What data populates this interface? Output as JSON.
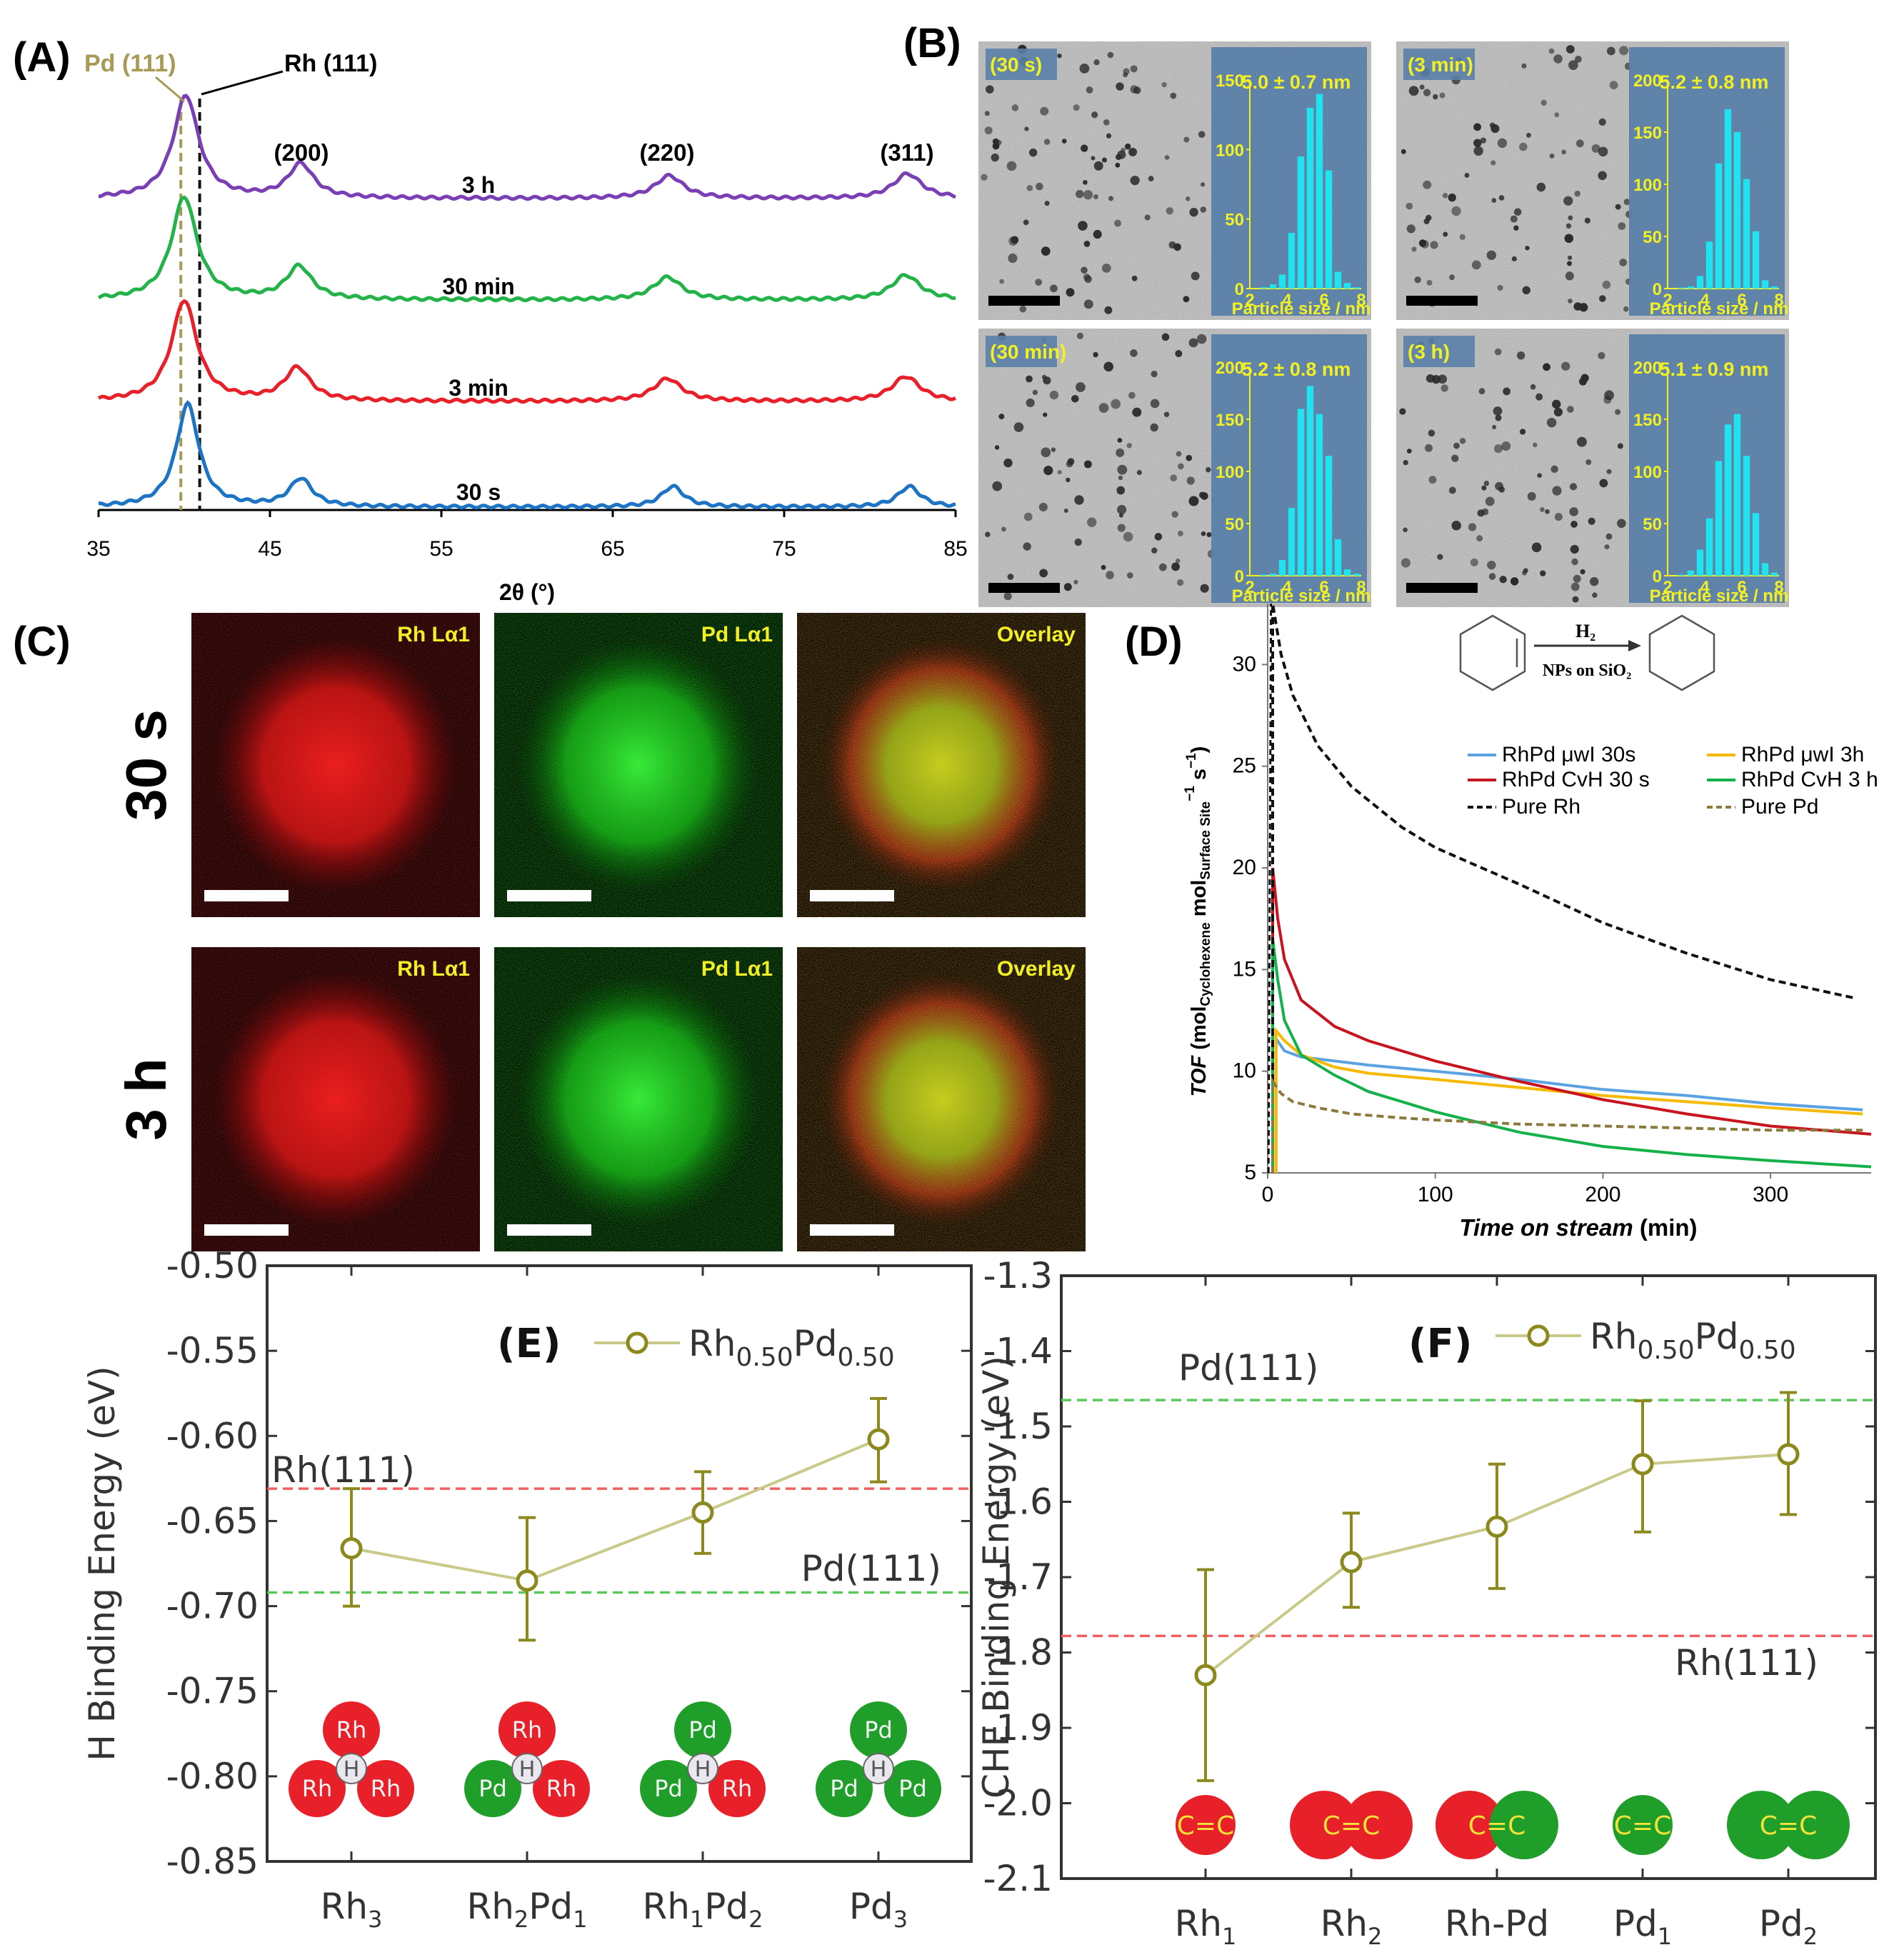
{
  "colors": {
    "rh": "#e8202a",
    "pd": "#1f9e2a",
    "olive": "#8c8a1e",
    "lightolive": "#c9c98a",
    "cyan": "#21e3f0",
    "temPanel": "#5a7fa8",
    "yellowText": "#f2f024"
  },
  "panel_labels": {
    "a": "(A)",
    "b": "(B)",
    "c": "(C)",
    "d": "(D)"
  },
  "chart_data": [
    {
      "id": "A",
      "type": "line",
      "xlabel": "2θ (°)",
      "ylabel": "",
      "xlim": [
        35,
        85
      ],
      "xticks": [
        35,
        45,
        55,
        65,
        75,
        85
      ],
      "annotations": {
        "pd111": "Pd (111)",
        "rh111": "Rh (111)",
        "p200": "(200)",
        "p220": "(220)",
        "p311": "(311)"
      },
      "ref_lines": {
        "pd": 39.8,
        "rh": 40.9
      },
      "series": [
        {
          "name": "3 h",
          "color": "#7a3fb5",
          "peaks": [
            [
              40.1,
              1.0,
              0.9
            ],
            [
              46.8,
              0.33,
              0.9
            ],
            [
              68.3,
              0.22,
              1.0
            ],
            [
              82.2,
              0.24,
              1.0
            ]
          ]
        },
        {
          "name": "30 min",
          "color": "#23b34a",
          "peaks": [
            [
              40.0,
              1.0,
              0.9
            ],
            [
              46.7,
              0.32,
              0.9
            ],
            [
              68.2,
              0.22,
              1.0
            ],
            [
              82.1,
              0.24,
              1.0
            ]
          ]
        },
        {
          "name": "3 min",
          "color": "#e8202a",
          "peaks": [
            [
              40.0,
              0.98,
              0.9
            ],
            [
              46.6,
              0.32,
              0.9
            ],
            [
              68.2,
              0.22,
              1.0
            ],
            [
              82.1,
              0.24,
              1.0
            ]
          ]
        },
        {
          "name": "30 s",
          "color": "#1d73c4",
          "peaks": [
            [
              40.2,
              1.0,
              0.8
            ],
            [
              46.8,
              0.27,
              0.8
            ],
            [
              68.5,
              0.2,
              0.8
            ],
            [
              82.3,
              0.2,
              0.8
            ]
          ]
        }
      ]
    },
    {
      "id": "B",
      "type": "bar",
      "xlabel": "Particle size / nm",
      "xlim": [
        2,
        8
      ],
      "xticks": [
        2,
        4,
        6,
        8
      ],
      "bin_centers": [
        2.75,
        3.25,
        3.75,
        4.25,
        4.75,
        5.25,
        5.75,
        6.25,
        6.75,
        7.25,
        7.75
      ],
      "panels": [
        {
          "label": "(30 s)",
          "stat": "5.0 ± 0.7 nm",
          "ylim": [
            0,
            150
          ],
          "yticks": [
            0,
            50,
            100,
            150
          ],
          "values": [
            1,
            3,
            10,
            40,
            95,
            130,
            140,
            85,
            12,
            4,
            1
          ]
        },
        {
          "label": "(3 min)",
          "stat": "5.2 ± 0.8 nm",
          "ylim": [
            0,
            200
          ],
          "yticks": [
            0,
            50,
            100,
            150,
            200
          ],
          "values": [
            1,
            2,
            12,
            45,
            120,
            172,
            150,
            105,
            55,
            8,
            2
          ]
        },
        {
          "label": "(30 min)",
          "stat": "5.2 ± 0.8 nm",
          "ylim": [
            0,
            200
          ],
          "yticks": [
            0,
            50,
            100,
            150,
            200
          ],
          "values": [
            1,
            2,
            15,
            65,
            160,
            182,
            155,
            115,
            35,
            6,
            2
          ]
        },
        {
          "label": "(3 h)",
          "stat": "5.1 ± 0.9 nm",
          "ylim": [
            0,
            200
          ],
          "yticks": [
            0,
            50,
            100,
            150,
            200
          ],
          "values": [
            1,
            5,
            25,
            55,
            110,
            145,
            155,
            115,
            60,
            12,
            3
          ]
        }
      ]
    },
    {
      "id": "C",
      "type": "other",
      "rows": [
        "30 s",
        "3 h"
      ],
      "maps": [
        "Rh Lα1",
        "Pd Lα1",
        "Overlay"
      ]
    },
    {
      "id": "D",
      "type": "line",
      "xlabel_italic": "Time on stream",
      "xlabel_unit": " (min)",
      "ylabel_italic": "TOF",
      "ylabel_rest": " (mol",
      "ylabel_sub1": "Cyclohexene",
      "ylabel_mid": " mol",
      "ylabel_sub2": "Surface Site",
      "ylabel_sup": "−1",
      "ylabel_end": " s",
      "ylabel_sup2": "−1",
      "ylabel_close": ")",
      "xlim": [
        0,
        360
      ],
      "ylim": [
        5,
        33
      ],
      "xticks": [
        0,
        100,
        200,
        300
      ],
      "yticks": [
        5,
        10,
        15,
        20,
        25,
        30
      ],
      "scheme": {
        "reagent": "H₂",
        "catalyst": "NPs on SiO₂"
      },
      "series": [
        {
          "name": "RhPd μwI 30s",
          "color": "#5ba3e0",
          "dash": "",
          "x": [
            5,
            10,
            20,
            40,
            60,
            100,
            150,
            200,
            250,
            300,
            355
          ],
          "y": [
            11.6,
            11.0,
            10.7,
            10.5,
            10.3,
            10.0,
            9.6,
            9.1,
            8.8,
            8.4,
            8.1
          ]
        },
        {
          "name": "RhPd μwI 3h",
          "color": "#f5b900",
          "dash": "",
          "x": [
            5,
            10,
            20,
            40,
            60,
            100,
            150,
            200,
            250,
            300,
            355
          ],
          "y": [
            12.0,
            11.5,
            10.8,
            10.2,
            9.9,
            9.6,
            9.2,
            8.8,
            8.5,
            8.2,
            7.9
          ]
        },
        {
          "name": "RhPd CvH 30 s",
          "color": "#c8141e",
          "dash": "",
          "x": [
            3,
            6,
            10,
            20,
            40,
            60,
            100,
            150,
            200,
            250,
            300,
            360
          ],
          "y": [
            20,
            17.5,
            15.5,
            13.5,
            12.2,
            11.5,
            10.5,
            9.5,
            8.6,
            7.9,
            7.3,
            6.9
          ]
        },
        {
          "name": "RhPd CvH 3 h",
          "color": "#14b04a",
          "dash": "",
          "x": [
            3,
            6,
            10,
            20,
            40,
            60,
            100,
            150,
            200,
            250,
            300,
            360
          ],
          "y": [
            16.5,
            14.5,
            12.5,
            10.8,
            9.8,
            9.0,
            8.0,
            7.0,
            6.3,
            5.9,
            5.6,
            5.3
          ]
        },
        {
          "name": "Pure Rh",
          "color": "#111111",
          "dash": "10,6",
          "x": [
            3,
            8,
            15,
            30,
            50,
            80,
            100,
            150,
            200,
            250,
            300,
            350
          ],
          "y": [
            33,
            30.5,
            28.5,
            26,
            24,
            22,
            21,
            19.2,
            17.3,
            15.8,
            14.5,
            13.6
          ]
        },
        {
          "name": "Pure Pd",
          "color": "#8c7a3c",
          "dash": "10,6",
          "x": [
            3,
            8,
            15,
            30,
            50,
            80,
            100,
            150,
            200,
            250,
            300,
            355
          ],
          "y": [
            9.5,
            8.9,
            8.5,
            8.2,
            7.9,
            7.7,
            7.6,
            7.4,
            7.3,
            7.2,
            7.1,
            7.1
          ]
        }
      ]
    },
    {
      "id": "E",
      "type": "scatter",
      "panel_label": "(E)",
      "ylabel": "H Binding Energy (eV)",
      "ylim": [
        -0.85,
        -0.5
      ],
      "yticks": [
        "-0.50",
        "-0.55",
        "-0.60",
        "-0.65",
        "-0.70",
        "-0.75",
        "-0.80",
        "-0.85"
      ],
      "legend_pre": "Rh",
      "legend_sub1": "0.50",
      "legend_mid": "Pd",
      "legend_sub2": "0.50",
      "categories": [
        {
          "a": "Rh",
          "as": "3",
          "b": "",
          "bs": ""
        },
        {
          "a": "Rh",
          "as": "2",
          "b": "Pd",
          "bs": "1"
        },
        {
          "a": "Rh",
          "as": "1",
          "b": "Pd",
          "bs": "2"
        },
        {
          "a": "Pd",
          "as": "3",
          "b": "",
          "bs": ""
        }
      ],
      "values": [
        -0.666,
        -0.685,
        -0.645,
        -0.602
      ],
      "err_low": [
        -0.7,
        -0.72,
        -0.669,
        -0.627
      ],
      "err_high": [
        -0.631,
        -0.648,
        -0.621,
        -0.578
      ],
      "refs": [
        {
          "label": "Rh(111)",
          "value": -0.631,
          "color": "#f06060"
        },
        {
          "label": "Pd(111)",
          "value": -0.692,
          "color": "#5cc85c"
        }
      ],
      "motifs": [
        [
          "Rh",
          "Rh",
          "Rh"
        ],
        [
          "Rh",
          "Pd",
          "Rh"
        ],
        [
          "Pd",
          "Pd",
          "Rh"
        ],
        [
          "Pd",
          "Pd",
          "Pd"
        ]
      ],
      "center_atom": "H"
    },
    {
      "id": "F",
      "type": "scatter",
      "panel_label": "(F)",
      "ylabel": "CHE Binding Energy (eV)",
      "ylim": [
        -2.1,
        -1.3
      ],
      "yticks": [
        "-1.3",
        "-1.4",
        "-1.5",
        "-1.6",
        "-1.7",
        "-1.8",
        "-1.9",
        "-2.0",
        "-2.1"
      ],
      "legend_pre": "Rh",
      "legend_sub1": "0.50",
      "legend_mid": "Pd",
      "legend_sub2": "0.50",
      "categories": [
        {
          "a": "Rh",
          "as": "1",
          "b": "",
          "bs": ""
        },
        {
          "a": "Rh",
          "as": "2",
          "b": "",
          "bs": ""
        },
        {
          "a": "Rh-Pd",
          "as": "",
          "b": "",
          "bs": ""
        },
        {
          "a": "Pd",
          "as": "1",
          "b": "",
          "bs": ""
        },
        {
          "a": "Pd",
          "as": "2",
          "b": "",
          "bs": ""
        }
      ],
      "values": [
        -1.83,
        -1.68,
        -1.633,
        -1.55,
        -1.537
      ],
      "err_low": [
        -1.97,
        -1.74,
        -1.715,
        -1.64,
        -1.617
      ],
      "err_high": [
        -1.69,
        -1.615,
        -1.55,
        -1.466,
        -1.455
      ],
      "refs": [
        {
          "label": "Pd(111)",
          "value": -1.465,
          "color": "#5cc85c"
        },
        {
          "label": "Rh(111)",
          "value": -1.778,
          "color": "#f06060"
        }
      ],
      "motifs": [
        [
          "Rh"
        ],
        [
          "Rh",
          "Rh"
        ],
        [
          "Rh",
          "Pd"
        ],
        [
          "Pd"
        ],
        [
          "Pd",
          "Pd"
        ]
      ],
      "bond": "C=C"
    }
  ]
}
